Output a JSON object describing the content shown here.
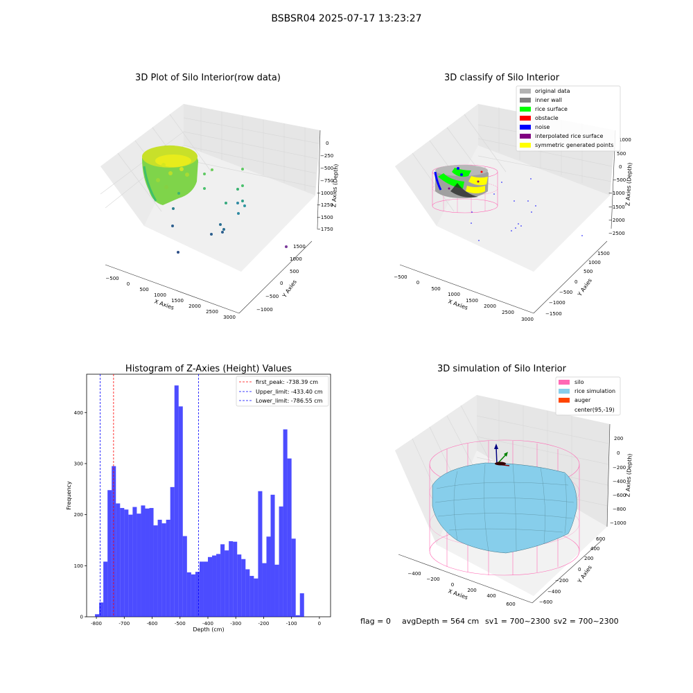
{
  "suptitle": "BSBSR04 2025-07-17 13:23:27",
  "footer": {
    "flag": "flag = 0",
    "avg_depth": "avgDepth = 564 cm",
    "sv1": "sv1 = 700~2300",
    "sv2": "sv2 = 700~2300"
  },
  "colors": {
    "histogram": "#0000ff",
    "first_peak": "#ff0000",
    "limits": "#0000ff",
    "silo": "#ff69b4",
    "rice_simulation": "#87ceeb",
    "auger": "#ff4500"
  },
  "panel_raw": {
    "title": "3D Plot of Silo Interior(row data)",
    "xlabel": "X Axies",
    "ylabel": "Y Axies",
    "zlabel": "Z Axies (Depth)",
    "xticks": [
      "−500",
      "0",
      "500",
      "1000",
      "1500",
      "2000",
      "2500",
      "3000"
    ],
    "yticks": [
      "−1000",
      "−500",
      "0",
      "500",
      "1000",
      "1500"
    ],
    "zticks": [
      "0",
      "−250",
      "−500",
      "−750",
      "−1000",
      "−1250",
      "−1500",
      "−1750"
    ]
  },
  "panel_classify": {
    "title": "3D classify of Silo Interior",
    "xlabel": "X Axies",
    "ylabel": "Y Axies",
    "zlabel": "Z Axies (Depth)",
    "xticks": [
      "−500",
      "0",
      "500",
      "1000",
      "1500",
      "2000",
      "2500",
      "3000"
    ],
    "yticks": [
      "−1500",
      "−1000",
      "−500",
      "0",
      "500",
      "1000",
      "1500"
    ],
    "zticks": [
      "1000",
      "500",
      "0",
      "−500",
      "−1000",
      "−1500",
      "−2000",
      "−2500"
    ],
    "legend": [
      {
        "label": "original data",
        "color": "#b3b3b3"
      },
      {
        "label": "inner wall",
        "color": "#808080"
      },
      {
        "label": "rice surface",
        "color": "#00ff00"
      },
      {
        "label": "obstacle",
        "color": "#ff0000"
      },
      {
        "label": "noise",
        "color": "#0000ff"
      },
      {
        "label": "interpolated rice surface",
        "color": "#800080"
      },
      {
        "label": "symmetric generated points",
        "color": "#ffff00"
      }
    ]
  },
  "panel_sim": {
    "title": "3D simulation of Silo Interior",
    "xlabel": "X Axies",
    "ylabel": "Y Axies",
    "zlabel": "Z Axies (Depth)",
    "xticks": [
      "−400",
      "−200",
      "0",
      "200",
      "400",
      "600"
    ],
    "yticks": [
      "−600",
      "−400",
      "−200",
      "0",
      "200",
      "400",
      "600"
    ],
    "zticks": [
      "200",
      "0",
      "−200",
      "−400",
      "−600",
      "−800",
      "−1000"
    ],
    "legend": [
      {
        "label": "silo",
        "color": "#ff69b4"
      },
      {
        "label": "rice simulation",
        "color": "#87ceeb"
      },
      {
        "label": "auger",
        "color": "#ff4500"
      },
      {
        "label": "center(95,-19)",
        "color": ""
      }
    ]
  },
  "chart_data": {
    "type": "bar",
    "title": "Histogram of Z-Axies (Height) Values",
    "xlabel": "Depth (cm)",
    "ylabel": "Frequency",
    "xlim": [
      -835,
      40
    ],
    "ylim": [
      0,
      475
    ],
    "xticks": [
      -800,
      -700,
      -600,
      -500,
      -400,
      -300,
      -200,
      -100,
      0
    ],
    "yticks": [
      0,
      100,
      200,
      300,
      400
    ],
    "bin_width": 15,
    "bin_start": -805,
    "values": [
      5,
      28,
      108,
      248,
      295,
      222,
      213,
      210,
      200,
      215,
      202,
      218,
      212,
      213,
      179,
      190,
      183,
      190,
      254,
      453,
      412,
      158,
      87,
      83,
      88,
      108,
      108,
      117,
      120,
      123,
      142,
      130,
      148,
      147,
      122,
      113,
      93,
      80,
      75,
      246,
      105,
      157,
      239,
      102,
      216,
      367,
      310,
      153,
      3,
      46
    ],
    "lines": [
      {
        "name": "first_peak: -738.39 cm",
        "x": -738.39,
        "color": "#ff0000"
      },
      {
        "name": "Upper_limit: -433.40 cm",
        "x": -433.4,
        "color": "#0000ff"
      },
      {
        "name": "Lower_limit: -786.55 cm",
        "x": -786.55,
        "color": "#0000ff"
      }
    ],
    "legend_position": "upper right",
    "grid": false
  }
}
